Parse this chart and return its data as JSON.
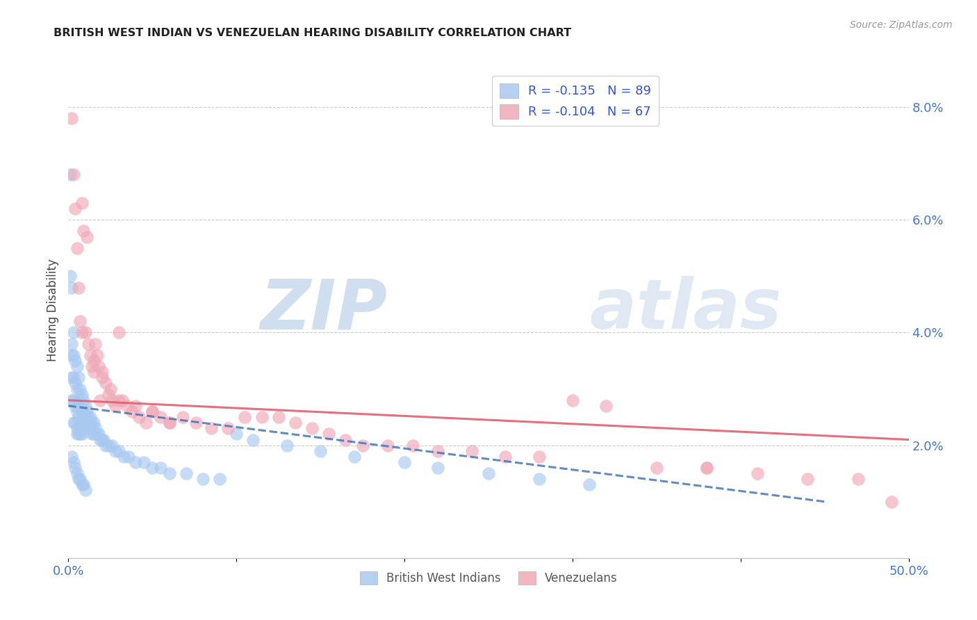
{
  "title": "BRITISH WEST INDIAN VS VENEZUELAN HEARING DISABILITY CORRELATION CHART",
  "source": "Source: ZipAtlas.com",
  "ylabel": "Hearing Disability",
  "xlim": [
    0.0,
    0.5
  ],
  "ylim": [
    0.0,
    0.088
  ],
  "xticks": [
    0.0,
    0.1,
    0.2,
    0.3,
    0.4,
    0.5
  ],
  "xtick_labels": [
    "0.0%",
    "",
    "",
    "",
    "",
    "50.0%"
  ],
  "yticks_right": [
    0.02,
    0.04,
    0.06,
    0.08
  ],
  "ytick_labels_right": [
    "2.0%",
    "4.0%",
    "6.0%",
    "8.0%"
  ],
  "legend_r_blue": "-0.135",
  "legend_n_blue": "89",
  "legend_r_pink": "-0.104",
  "legend_n_pink": "67",
  "blue_color": "#a8c8f0",
  "pink_color": "#f0a8b8",
  "trendline_blue_color": "#4477bb",
  "trendline_pink_color": "#e06070",
  "background_color": "#ffffff",
  "grid_color": "#cccccc",
  "watermark_zip": "ZIP",
  "watermark_atlas": "atlas",
  "blue_x": [
    0.001,
    0.001,
    0.002,
    0.002,
    0.002,
    0.002,
    0.002,
    0.003,
    0.003,
    0.003,
    0.003,
    0.003,
    0.004,
    0.004,
    0.004,
    0.004,
    0.005,
    0.005,
    0.005,
    0.005,
    0.005,
    0.006,
    0.006,
    0.006,
    0.006,
    0.007,
    0.007,
    0.007,
    0.007,
    0.008,
    0.008,
    0.008,
    0.008,
    0.009,
    0.009,
    0.009,
    0.01,
    0.01,
    0.01,
    0.011,
    0.011,
    0.012,
    0.012,
    0.013,
    0.013,
    0.014,
    0.014,
    0.015,
    0.015,
    0.016,
    0.017,
    0.018,
    0.019,
    0.02,
    0.021,
    0.022,
    0.024,
    0.026,
    0.028,
    0.03,
    0.033,
    0.036,
    0.04,
    0.045,
    0.05,
    0.055,
    0.06,
    0.07,
    0.08,
    0.09,
    0.1,
    0.11,
    0.13,
    0.15,
    0.17,
    0.2,
    0.22,
    0.25,
    0.28,
    0.31,
    0.002,
    0.003,
    0.004,
    0.005,
    0.006,
    0.007,
    0.008,
    0.009,
    0.01
  ],
  "blue_y": [
    0.068,
    0.05,
    0.048,
    0.038,
    0.036,
    0.032,
    0.028,
    0.04,
    0.036,
    0.032,
    0.028,
    0.024,
    0.035,
    0.031,
    0.027,
    0.024,
    0.034,
    0.03,
    0.026,
    0.023,
    0.022,
    0.032,
    0.028,
    0.025,
    0.022,
    0.03,
    0.027,
    0.024,
    0.022,
    0.029,
    0.026,
    0.024,
    0.022,
    0.028,
    0.025,
    0.023,
    0.027,
    0.025,
    0.023,
    0.026,
    0.024,
    0.025,
    0.023,
    0.025,
    0.023,
    0.024,
    0.022,
    0.024,
    0.022,
    0.023,
    0.022,
    0.022,
    0.021,
    0.021,
    0.021,
    0.02,
    0.02,
    0.02,
    0.019,
    0.019,
    0.018,
    0.018,
    0.017,
    0.017,
    0.016,
    0.016,
    0.015,
    0.015,
    0.014,
    0.014,
    0.022,
    0.021,
    0.02,
    0.019,
    0.018,
    0.017,
    0.016,
    0.015,
    0.014,
    0.013,
    0.018,
    0.017,
    0.016,
    0.015,
    0.014,
    0.014,
    0.013,
    0.013,
    0.012
  ],
  "pink_x": [
    0.002,
    0.003,
    0.004,
    0.005,
    0.006,
    0.007,
    0.008,
    0.009,
    0.01,
    0.011,
    0.012,
    0.013,
    0.014,
    0.015,
    0.016,
    0.017,
    0.018,
    0.019,
    0.02,
    0.022,
    0.024,
    0.026,
    0.028,
    0.03,
    0.032,
    0.035,
    0.038,
    0.042,
    0.046,
    0.05,
    0.055,
    0.06,
    0.068,
    0.076,
    0.085,
    0.095,
    0.105,
    0.115,
    0.125,
    0.135,
    0.145,
    0.155,
    0.165,
    0.175,
    0.19,
    0.205,
    0.22,
    0.24,
    0.26,
    0.28,
    0.3,
    0.32,
    0.35,
    0.38,
    0.41,
    0.44,
    0.47,
    0.49,
    0.008,
    0.015,
    0.02,
    0.025,
    0.03,
    0.04,
    0.05,
    0.06,
    0.38
  ],
  "pink_y": [
    0.078,
    0.068,
    0.062,
    0.055,
    0.048,
    0.042,
    0.063,
    0.058,
    0.04,
    0.057,
    0.038,
    0.036,
    0.034,
    0.033,
    0.038,
    0.036,
    0.034,
    0.028,
    0.033,
    0.031,
    0.029,
    0.028,
    0.027,
    0.04,
    0.028,
    0.027,
    0.026,
    0.025,
    0.024,
    0.026,
    0.025,
    0.024,
    0.025,
    0.024,
    0.023,
    0.023,
    0.025,
    0.025,
    0.025,
    0.024,
    0.023,
    0.022,
    0.021,
    0.02,
    0.02,
    0.02,
    0.019,
    0.019,
    0.018,
    0.018,
    0.028,
    0.027,
    0.016,
    0.016,
    0.015,
    0.014,
    0.014,
    0.01,
    0.04,
    0.035,
    0.032,
    0.03,
    0.028,
    0.027,
    0.026,
    0.024,
    0.016
  ],
  "blue_trend_x": [
    0.0,
    0.45
  ],
  "blue_trend_y": [
    0.027,
    0.01
  ],
  "pink_trend_x": [
    0.0,
    0.5
  ],
  "pink_trend_y": [
    0.028,
    0.021
  ]
}
